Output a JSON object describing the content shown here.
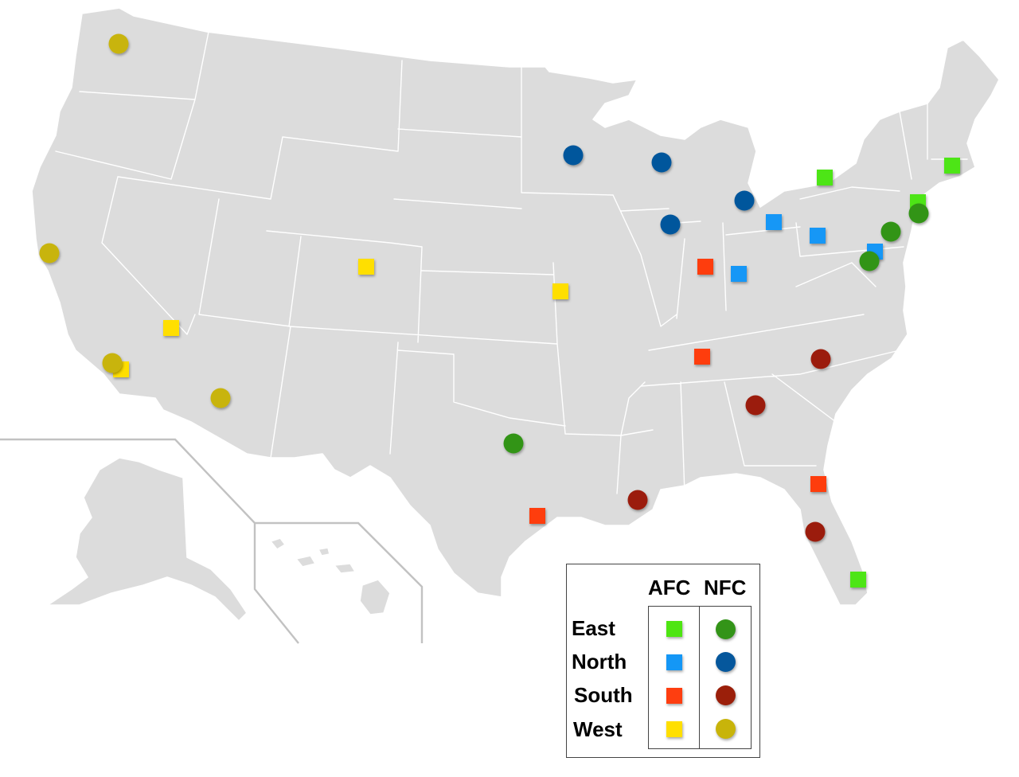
{
  "legend": {
    "conferences": [
      "AFC",
      "NFC"
    ],
    "divisions": [
      "East",
      "North",
      "South",
      "West"
    ],
    "colors": {
      "AFC": {
        "East": "#4ee512",
        "North": "#1497f6",
        "South": "#fe3e10",
        "West": "#ffdf00"
      },
      "NFC": {
        "East": "#339418",
        "North": "#05579c",
        "South": "#9b1f0a",
        "West": "#c8b40a"
      }
    },
    "shapes": {
      "AFC": "square",
      "NFC": "circle"
    }
  },
  "teams": [
    {
      "conference": "NFC",
      "division": "West",
      "location": "Seattle, WA"
    },
    {
      "conference": "NFC",
      "division": "West",
      "location": "San Francisco Bay Area, CA"
    },
    {
      "conference": "AFC",
      "division": "West",
      "location": "Los Angeles, CA"
    },
    {
      "conference": "NFC",
      "division": "West",
      "location": "Los Angeles, CA"
    },
    {
      "conference": "AFC",
      "division": "West",
      "location": "Las Vegas, NV"
    },
    {
      "conference": "NFC",
      "division": "West",
      "location": "Phoenix, AZ"
    },
    {
      "conference": "AFC",
      "division": "West",
      "location": "Denver, CO"
    },
    {
      "conference": "AFC",
      "division": "West",
      "location": "Kansas City, MO"
    },
    {
      "conference": "NFC",
      "division": "North",
      "location": "Minneapolis, MN"
    },
    {
      "conference": "NFC",
      "division": "North",
      "location": "Green Bay, WI"
    },
    {
      "conference": "NFC",
      "division": "North",
      "location": "Chicago, IL"
    },
    {
      "conference": "NFC",
      "division": "North",
      "location": "Detroit, MI"
    },
    {
      "conference": "AFC",
      "division": "North",
      "location": "Cleveland, OH"
    },
    {
      "conference": "AFC",
      "division": "North",
      "location": "Pittsburgh, PA"
    },
    {
      "conference": "AFC",
      "division": "North",
      "location": "Cincinnati, OH"
    },
    {
      "conference": "AFC",
      "division": "North",
      "location": "Baltimore, MD"
    },
    {
      "conference": "AFC",
      "division": "South",
      "location": "Indianapolis, IN"
    },
    {
      "conference": "AFC",
      "division": "South",
      "location": "Nashville, TN"
    },
    {
      "conference": "AFC",
      "division": "South",
      "location": "Houston, TX"
    },
    {
      "conference": "AFC",
      "division": "South",
      "location": "Jacksonville, FL"
    },
    {
      "conference": "NFC",
      "division": "South",
      "location": "Charlotte, NC"
    },
    {
      "conference": "NFC",
      "division": "South",
      "location": "Atlanta, GA"
    },
    {
      "conference": "NFC",
      "division": "South",
      "location": "New Orleans, LA"
    },
    {
      "conference": "NFC",
      "division": "South",
      "location": "Tampa, FL"
    },
    {
      "conference": "AFC",
      "division": "East",
      "location": "Buffalo, NY"
    },
    {
      "conference": "AFC",
      "division": "East",
      "location": "New England, MA"
    },
    {
      "conference": "AFC",
      "division": "East",
      "location": "New York / New Jersey"
    },
    {
      "conference": "AFC",
      "division": "East",
      "location": "Miami, FL"
    },
    {
      "conference": "NFC",
      "division": "East",
      "location": "New York / New Jersey"
    },
    {
      "conference": "NFC",
      "division": "East",
      "location": "Philadelphia, PA"
    },
    {
      "conference": "NFC",
      "division": "East",
      "location": "Washington, DC"
    },
    {
      "conference": "NFC",
      "division": "East",
      "location": "Dallas, TX"
    }
  ]
}
